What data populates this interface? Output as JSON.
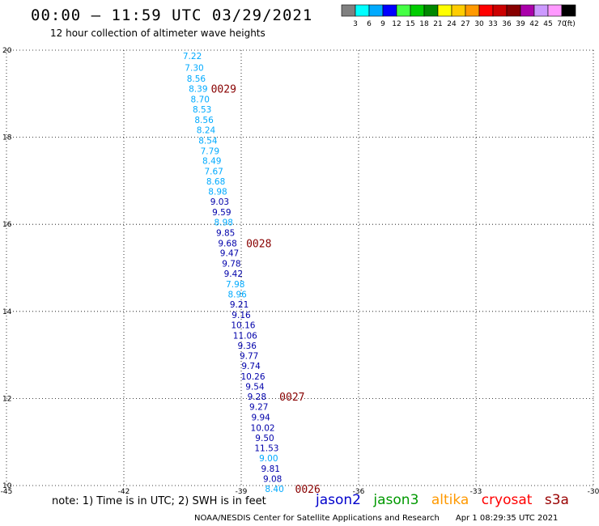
{
  "header": {
    "title": "00:00 – 11:59 UTC 03/29/2021",
    "subtitle": "12 hour collection of altimeter wave heights"
  },
  "color_scale": {
    "unit": "(ft)",
    "bins": [
      {
        "label": "3",
        "color": "#808080"
      },
      {
        "label": "6",
        "color": "#00ffff"
      },
      {
        "label": "9",
        "color": "#00aaff"
      },
      {
        "label": "12",
        "color": "#0000ff"
      },
      {
        "label": "15",
        "color": "#44ff44"
      },
      {
        "label": "18",
        "color": "#00cc00"
      },
      {
        "label": "21",
        "color": "#008800"
      },
      {
        "label": "24",
        "color": "#ffff00"
      },
      {
        "label": "27",
        "color": "#ffcc00"
      },
      {
        "label": "30",
        "color": "#ff9900"
      },
      {
        "label": "33",
        "color": "#ff0000"
      },
      {
        "label": "36",
        "color": "#cc0000"
      },
      {
        "label": "39",
        "color": "#880000"
      },
      {
        "label": "42",
        "color": "#aa00aa"
      },
      {
        "label": "45",
        "color": "#cc99ff"
      },
      {
        "label": "70",
        "color": "#ff99ff"
      },
      {
        "label": "",
        "color": "#000000"
      }
    ]
  },
  "chart_data": {
    "type": "scatter",
    "xlim": [
      -45,
      -30
    ],
    "ylim": [
      10,
      20
    ],
    "x_ticks": [
      "-45",
      "-42",
      "-39",
      "-36",
      "-33",
      "-30"
    ],
    "y_ticks": [
      "10",
      "12",
      "14",
      "16",
      "18",
      "20"
    ],
    "grid": true,
    "points": [
      {
        "lon": -40.25,
        "lat": 19.87,
        "swh": "7.22",
        "color": "#00aaff"
      },
      {
        "lon": -40.2,
        "lat": 19.6,
        "swh": "7.30",
        "color": "#00aaff"
      },
      {
        "lon": -40.15,
        "lat": 19.35,
        "swh": "8.56",
        "color": "#00aaff"
      },
      {
        "lon": -40.1,
        "lat": 19.12,
        "swh": "8.39",
        "color": "#00aaff"
      },
      {
        "lon": -40.05,
        "lat": 18.88,
        "swh": "8.70",
        "color": "#00aaff"
      },
      {
        "lon": -40.0,
        "lat": 18.64,
        "swh": "8.53",
        "color": "#00aaff"
      },
      {
        "lon": -39.95,
        "lat": 18.4,
        "swh": "8.56",
        "color": "#00aaff"
      },
      {
        "lon": -39.9,
        "lat": 18.17,
        "swh": "8.24",
        "color": "#00aaff"
      },
      {
        "lon": -39.85,
        "lat": 17.93,
        "swh": "8.54",
        "color": "#00aaff"
      },
      {
        "lon": -39.8,
        "lat": 17.69,
        "swh": "7.79",
        "color": "#00aaff"
      },
      {
        "lon": -39.75,
        "lat": 17.46,
        "swh": "8.49",
        "color": "#00aaff"
      },
      {
        "lon": -39.7,
        "lat": 17.22,
        "swh": "7.67",
        "color": "#00aaff"
      },
      {
        "lon": -39.65,
        "lat": 16.99,
        "swh": "8.68",
        "color": "#00aaff"
      },
      {
        "lon": -39.6,
        "lat": 16.76,
        "swh": "8.98",
        "color": "#00aaff"
      },
      {
        "lon": -39.55,
        "lat": 16.52,
        "swh": "9.03",
        "color": "#0000aa"
      },
      {
        "lon": -39.5,
        "lat": 16.28,
        "swh": "9.59",
        "color": "#0000aa"
      },
      {
        "lon": -39.45,
        "lat": 16.05,
        "swh": "8.98",
        "color": "#00aaff"
      },
      {
        "lon": -39.4,
        "lat": 15.81,
        "swh": "9.85",
        "color": "#0000aa"
      },
      {
        "lon": -39.35,
        "lat": 15.57,
        "swh": "9.68",
        "color": "#0000aa"
      },
      {
        "lon": -39.3,
        "lat": 15.34,
        "swh": "9.47",
        "color": "#0000aa"
      },
      {
        "lon": -39.25,
        "lat": 15.1,
        "swh": "9.78",
        "color": "#0000aa"
      },
      {
        "lon": -39.2,
        "lat": 14.87,
        "swh": "9.42",
        "color": "#0000aa"
      },
      {
        "lon": -39.15,
        "lat": 14.63,
        "swh": "7.98",
        "color": "#00aaff"
      },
      {
        "lon": -39.1,
        "lat": 14.4,
        "swh": "8.96",
        "color": "#00aaff"
      },
      {
        "lon": -39.05,
        "lat": 14.16,
        "swh": "9.21",
        "color": "#0000aa"
      },
      {
        "lon": -39.0,
        "lat": 13.92,
        "swh": "9.16",
        "color": "#0000aa"
      },
      {
        "lon": -38.95,
        "lat": 13.69,
        "swh": "10.16",
        "color": "#0000aa"
      },
      {
        "lon": -38.9,
        "lat": 13.45,
        "swh": "11.06",
        "color": "#0000aa"
      },
      {
        "lon": -38.85,
        "lat": 13.22,
        "swh": "9.36",
        "color": "#0000aa"
      },
      {
        "lon": -38.8,
        "lat": 12.98,
        "swh": "9.77",
        "color": "#0000aa"
      },
      {
        "lon": -38.75,
        "lat": 12.75,
        "swh": "9.74",
        "color": "#0000aa"
      },
      {
        "lon": -38.7,
        "lat": 12.51,
        "swh": "10.26",
        "color": "#0000aa"
      },
      {
        "lon": -38.65,
        "lat": 12.28,
        "swh": "9.54",
        "color": "#0000aa"
      },
      {
        "lon": -38.6,
        "lat": 12.04,
        "swh": "9.28",
        "color": "#0000aa"
      },
      {
        "lon": -38.55,
        "lat": 11.81,
        "swh": "9.27",
        "color": "#0000aa"
      },
      {
        "lon": -38.5,
        "lat": 11.57,
        "swh": "9.94",
        "color": "#0000aa"
      },
      {
        "lon": -38.45,
        "lat": 11.33,
        "swh": "10.02",
        "color": "#0000aa"
      },
      {
        "lon": -38.4,
        "lat": 11.1,
        "swh": "9.50",
        "color": "#0000aa"
      },
      {
        "lon": -38.35,
        "lat": 10.86,
        "swh": "11.53",
        "color": "#0000aa"
      },
      {
        "lon": -38.3,
        "lat": 10.63,
        "swh": "9.00",
        "color": "#00aaff"
      },
      {
        "lon": -38.25,
        "lat": 10.39,
        "swh": "9.81",
        "color": "#0000aa"
      },
      {
        "lon": -38.2,
        "lat": 10.16,
        "swh": "9.08",
        "color": "#0000aa"
      },
      {
        "lon": -38.15,
        "lat": 9.93,
        "swh": "8.40",
        "color": "#00aaff"
      }
    ],
    "hour_labels": [
      {
        "lon": -39.45,
        "lat": 19.12,
        "label": "0029"
      },
      {
        "lon": -38.55,
        "lat": 15.57,
        "label": "0028"
      },
      {
        "lon": -37.7,
        "lat": 12.04,
        "label": "0027"
      },
      {
        "lon": -37.3,
        "lat": 9.93,
        "label": "0026"
      }
    ]
  },
  "footer": {
    "note": "note: 1) Time is in UTC; 2) SWH is in feet",
    "satellites": [
      {
        "name": "jason2",
        "color": "#0000cc"
      },
      {
        "name": "jason3",
        "color": "#009900"
      },
      {
        "name": "altika",
        "color": "#ff9900"
      },
      {
        "name": "cryosat",
        "color": "#ff0000"
      },
      {
        "name": "s3a",
        "color": "#990000"
      }
    ],
    "credit": "NOAA/NESDIS Center for Satellite Applications and Research",
    "timestamp": "Apr  1 08:29:35 UTC 2021"
  }
}
